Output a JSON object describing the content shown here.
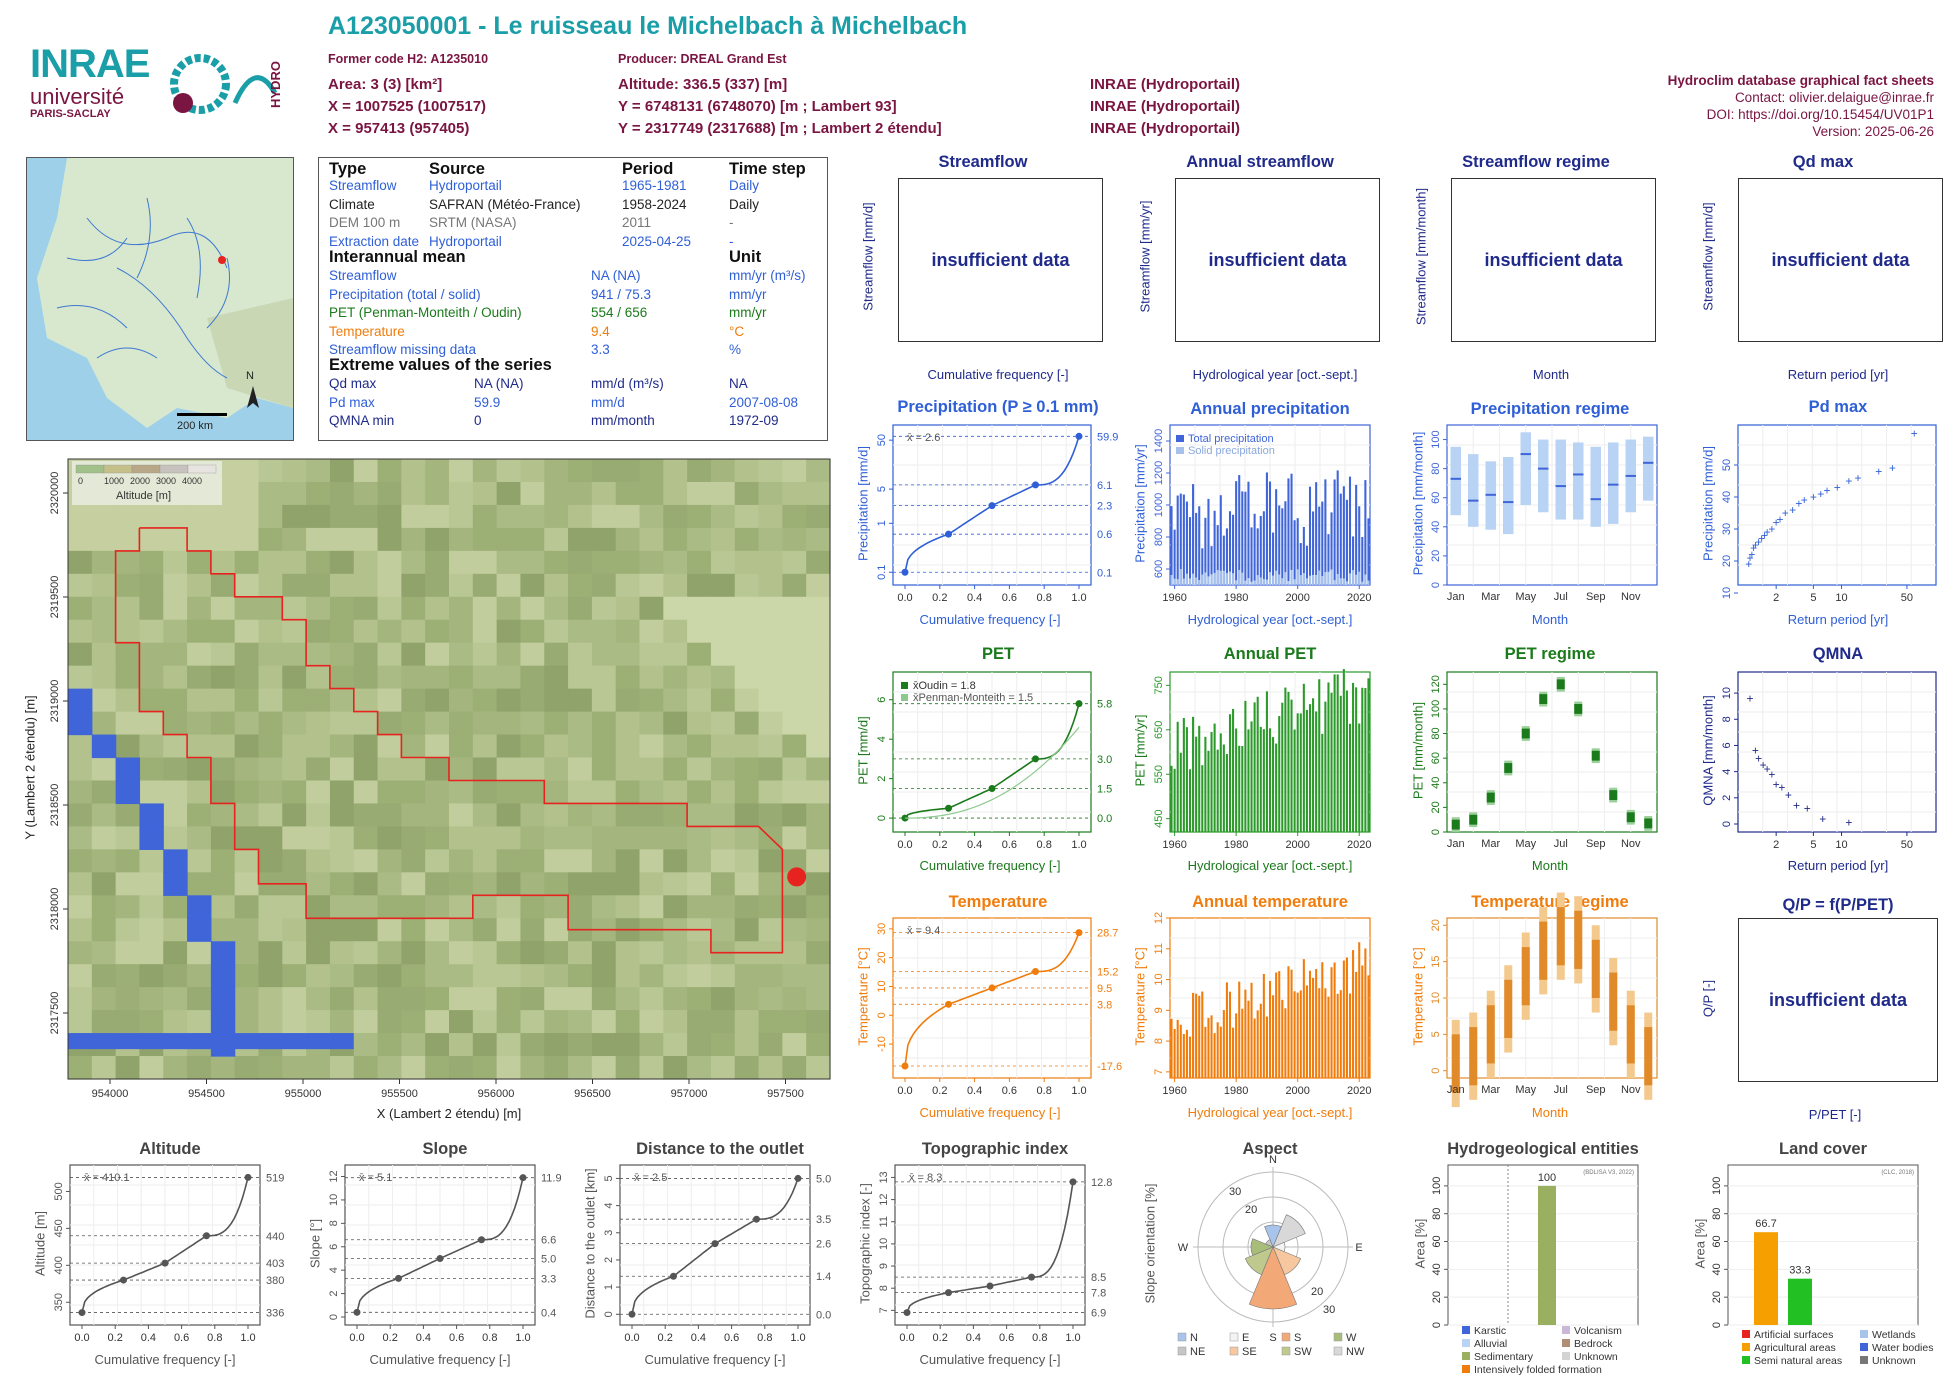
{
  "header": {
    "title": "A123050001 - Le ruisseau le Michelbach à Michelbach",
    "former_code": "Former code H2: A1235010",
    "producer": "Producer: DREAL Grand Est",
    "area": "Area: 3 (3) [km²]",
    "altitude": "Altitude: 336.5 (337) [m]",
    "x1": "X = 1007525 (1007517)",
    "y1": "Y = 6748131 (6748070) [m ; Lambert 93]",
    "src1": "INRAE (Hydroportail)",
    "x2": "X = 957413 (957405)",
    "y2": "Y = 2317749 (2317688) [m ; Lambert 2 étendu]",
    "src2": "INRAE (Hydroportail)",
    "src0": "INRAE (Hydroportail)",
    "db": "Hydroclim database graphical fact sheets",
    "contact": "Contact: olivier.delaigue@inrae.fr",
    "doi": "DOI: https://doi.org/10.15454/UV01P1",
    "version": "Version: 2025-06-26"
  },
  "logos": {
    "inrae": "INRAE",
    "univ": "université",
    "ps": "PARIS-SACLAY",
    "hydro": "HYDRO"
  },
  "overview_map": {
    "scale": "200 km",
    "north": "N"
  },
  "info": {
    "h_type": "Type",
    "h_source": "Source",
    "h_period": "Period",
    "h_timestep": "Time step",
    "rows": [
      {
        "type": "Streamflow",
        "source": "Hydroportail",
        "period": "1965-1981",
        "step": "Daily"
      },
      {
        "type": "Climate",
        "source": "SAFRAN (Météo-France)",
        "period": "1958-2024",
        "step": "Daily"
      },
      {
        "type": "DEM 100 m",
        "source": "SRTM (NASA)",
        "period": "2011",
        "step": "-"
      },
      {
        "type": "Extraction date",
        "source": "Hydroportail",
        "period": "2025-04-25",
        "step": "-"
      }
    ],
    "h_mean": "Interannual mean",
    "h_unit": "Unit",
    "mean_rows": [
      {
        "label": "Streamflow",
        "value": "NA (NA)",
        "unit": "mm/yr (m³/s)"
      },
      {
        "label": "Precipitation (total / solid)",
        "value": "941 / 75.3",
        "unit": "mm/yr"
      },
      {
        "label": "PET (Penman-Monteith / Oudin)",
        "value": "554 / 656",
        "unit": "mm/yr"
      },
      {
        "label": "Temperature",
        "value": "9.4",
        "unit": "°C"
      },
      {
        "label": "Streamflow missing data",
        "value": "3.3",
        "unit": "%"
      }
    ],
    "h_extreme": "Extreme values of the series",
    "ext_rows": [
      {
        "label": "Qd max",
        "value": "NA (NA)",
        "unit": "mm/d (m³/s)",
        "date": "NA"
      },
      {
        "label": "Pd max",
        "value": "59.9",
        "unit": "mm/d",
        "date": "2007-08-08"
      },
      {
        "label": "QMNA min",
        "value": "0",
        "unit": "mm/month",
        "date": "1972-09"
      }
    ]
  },
  "dem_map": {
    "legend_title": "Altitude [m]",
    "legend_ticks": [
      "0",
      "1000",
      "2000",
      "3000",
      "4000"
    ],
    "xlabel": "X (Lambert 2 étendu) [m]",
    "ylabel": "Y (Lambert 2 étendu) [m]",
    "xticks": [
      "954000",
      "954500",
      "955000",
      "955500",
      "956000",
      "956500",
      "957000",
      "957500"
    ],
    "yticks": [
      "2317500",
      "2318000",
      "2318500",
      "2319000",
      "2319500",
      "2320000"
    ]
  },
  "panels": {
    "streamflow": {
      "title": "Streamflow",
      "ylabel": "Streamflow [mm/d]",
      "xlabel": "Cumulative frequency [-]",
      "msg": "insufficient data"
    },
    "annual_streamflow": {
      "title": "Annual streamflow",
      "ylabel": "Streamflow [mm/yr]",
      "xlabel": "Hydrological year [oct.-sept.]",
      "msg": "insufficient data"
    },
    "streamflow_regime": {
      "title": "Streamflow regime",
      "ylabel": "Streamflow [mm/month]",
      "xlabel": "Month",
      "msg": "insufficient data"
    },
    "qd_max": {
      "title": "Qd max",
      "ylabel": "Streamflow [mm/d]",
      "xlabel": "Return period [yr]",
      "msg": "insufficient data"
    },
    "precip": {
      "title": "Precipitation (P ≥ 0.1 mm)",
      "ylabel": "Precipitation [mm/d]",
      "xlabel": "Cumulative frequency [-]",
      "mean": "x̄ = 2.6"
    },
    "annual_precip": {
      "title": "Annual precipitation",
      "ylabel": "Precipitation [mm/yr]",
      "xlabel": "Hydrological year [oct.-sept.]",
      "legend": [
        "Total precipitation",
        "Solid precipitation"
      ]
    },
    "precip_regime": {
      "title": "Precipitation regime",
      "ylabel": "Precipitation [mm/month]",
      "xlabel": "Month"
    },
    "pd_max": {
      "title": "Pd max",
      "ylabel": "Precipitation [mm/d]",
      "xlabel": "Return period [yr]"
    },
    "pet": {
      "title": "PET",
      "ylabel": "PET [mm/d]",
      "xlabel": "Cumulative frequency [-]",
      "legend": [
        "x̄Oudin = 1.8",
        "x̄Penman-Monteith = 1.5"
      ]
    },
    "annual_pet": {
      "title": "Annual PET",
      "ylabel": "PET [mm/yr]",
      "xlabel": "Hydrological year [oct.-sept.]"
    },
    "pet_regime": {
      "title": "PET regime",
      "ylabel": "PET [mm/month]",
      "xlabel": "Month"
    },
    "qmna": {
      "title": "QMNA",
      "ylabel": "QMNA [mm/month]",
      "xlabel": "Return period [yr]"
    },
    "temp": {
      "title": "Temperature",
      "ylabel": "Temperature [°C]",
      "xlabel": "Cumulative frequency [-]",
      "mean": "x̄ = 9.4"
    },
    "annual_temp": {
      "title": "Annual temperature",
      "ylabel": "Temperature [°C]",
      "xlabel": "Hydrological year [oct.-sept.]"
    },
    "temp_regime": {
      "title": "Temperature regime",
      "ylabel": "Temperature [°C]",
      "xlabel": "Month"
    },
    "qp": {
      "title": "Q/P = f(P/PET)",
      "ylabel": "Q/P [-]",
      "xlabel": "P/PET [-]",
      "msg": "insufficient data"
    },
    "altitude": {
      "title": "Altitude",
      "ylabel": "Altitude [m]",
      "xlabel": "Cumulative frequency [-]",
      "mean": "x̄ = 410.1"
    },
    "slope": {
      "title": "Slope",
      "ylabel": "Slope [°]",
      "xlabel": "Cumulative frequency [-]",
      "mean": "x̄ = 5.1"
    },
    "distance": {
      "title": "Distance to the outlet",
      "ylabel": "Distance to the outlet [km]",
      "xlabel": "Cumulative frequency [-]",
      "mean": "x̄ = 2.5"
    },
    "topo": {
      "title": "Topographic index",
      "ylabel": "Topographic index [-]",
      "xlabel": "Cumulative frequency [-]",
      "mean": "x̄ = 8.3"
    },
    "aspect": {
      "title": "Aspect",
      "ylabel": "Slope orientation [%]",
      "legend": [
        "N",
        "E",
        "S",
        "W",
        "NE",
        "SE",
        "SW",
        "NW"
      ]
    },
    "hydrogeo": {
      "title": "Hydrogeological entities",
      "ylabel": "Area [%]",
      "source": "(BDLISA V3, 2022)",
      "legend": [
        "Karstic",
        "Volcanism",
        "Alluvial",
        "Bedrock",
        "Sedimentary",
        "Unknown",
        "Intensively folded formation"
      ]
    },
    "landcover": {
      "title": "Land cover",
      "ylabel": "Area [%]",
      "source": "(CLC, 2018)",
      "legend": [
        "Artificial surfaces",
        "Wetlands",
        "Agricultural areas",
        "Water bodies",
        "Semi natural areas",
        "Unknown"
      ]
    }
  },
  "chart_data": [
    {
      "type": "line",
      "name": "precip_cdf",
      "x": [
        0,
        0.25,
        0.5,
        0.75,
        1.0
      ],
      "y": [
        0.1,
        0.6,
        2.3,
        6.1,
        59.9
      ],
      "yscale": "log",
      "ylim": [
        0.08,
        70
      ],
      "yticks": [
        0.1,
        1,
        5,
        50
      ],
      "right_labels": [
        59.9,
        6.1,
        2.3,
        0.6,
        0.1
      ]
    },
    {
      "type": "bar",
      "name": "annual_precip",
      "x_start": 1959,
      "x_end": 2023,
      "xticks": [
        1960,
        1980,
        2000,
        2020
      ],
      "yticks": [
        600,
        800,
        1000,
        1200,
        1400
      ],
      "ylim": [
        500,
        1500
      ]
    },
    {
      "type": "box",
      "name": "precip_regime",
      "categories": [
        "Jan",
        "Feb",
        "Mar",
        "Apr",
        "May",
        "Jun",
        "Jul",
        "Aug",
        "Sep",
        "Oct",
        "Nov",
        "Dec"
      ],
      "median": [
        73,
        58,
        62,
        57,
        90,
        80,
        68,
        76,
        59,
        69,
        75,
        84
      ],
      "q1": [
        48,
        40,
        38,
        35,
        55,
        50,
        45,
        45,
        40,
        42,
        50,
        58
      ],
      "q3": [
        95,
        90,
        85,
        88,
        105,
        100,
        100,
        98,
        95,
        98,
        100,
        102
      ],
      "ylim": [
        0,
        110
      ],
      "yticks": [
        0,
        20,
        40,
        60,
        80,
        100
      ]
    },
    {
      "type": "scatter",
      "name": "pd_max",
      "xscale": "log",
      "xticks": [
        2,
        5,
        10,
        50
      ],
      "yticks": [
        10,
        20,
        30,
        40,
        50
      ],
      "ylim": [
        15,
        60
      ],
      "x": [
        1.02,
        1.05,
        1.1,
        1.15,
        1.2,
        1.3,
        1.4,
        1.5,
        1.6,
        1.8,
        2,
        2.2,
        2.5,
        3,
        3.5,
        4,
        5,
        6,
        7,
        9,
        12,
        15,
        25,
        35,
        60
      ],
      "y": [
        19,
        21,
        22,
        24,
        25,
        26,
        27,
        28,
        29,
        30,
        32,
        33,
        35,
        36,
        38,
        39,
        40,
        41,
        42,
        43,
        45,
        46,
        48,
        49,
        59.9
      ]
    },
    {
      "type": "line",
      "name": "pet_cdf",
      "x": [
        0,
        0.25,
        0.5,
        0.75,
        1.0
      ],
      "y": [
        0.0,
        0.5,
        1.5,
        3.0,
        5.8
      ],
      "ylim": [
        -0.3,
        7
      ],
      "yticks": [
        0,
        2,
        4,
        6
      ],
      "right_labels": [
        5.8,
        3.0,
        1.5,
        0.0
      ]
    },
    {
      "type": "bar",
      "name": "annual_pet",
      "x_start": 1959,
      "x_end": 2023,
      "xticks": [
        1960,
        1980,
        2000,
        2020
      ],
      "yticks": [
        450,
        550,
        650,
        750
      ],
      "ylim": [
        420,
        780
      ]
    },
    {
      "type": "box",
      "name": "pet_regime",
      "categories": [
        "Jan",
        "Feb",
        "Mar",
        "Apr",
        "May",
        "Jun",
        "Jul",
        "Aug",
        "Sep",
        "Oct",
        "Nov",
        "Dec"
      ],
      "median": [
        6,
        10,
        28,
        52,
        80,
        108,
        120,
        100,
        62,
        30,
        12,
        7
      ],
      "ylim": [
        0,
        130
      ],
      "yticks": [
        0,
        20,
        40,
        60,
        80,
        100,
        120
      ]
    },
    {
      "type": "scatter",
      "name": "qmna",
      "xscale": "log",
      "xticks": [
        2,
        5,
        10,
        50
      ],
      "yticks": [
        0,
        2,
        4,
        6,
        8,
        10
      ],
      "ylim": [
        0,
        11
      ],
      "x": [
        1.05,
        1.2,
        1.3,
        1.45,
        1.6,
        1.8,
        2.0,
        2.3,
        2.7,
        3.3,
        4.3,
        6.3,
        12.0
      ],
      "y": [
        9.6,
        5.6,
        5.0,
        4.5,
        4.2,
        3.8,
        3.0,
        2.8,
        2.2,
        1.4,
        1.2,
        0.4,
        0.1
      ]
    },
    {
      "type": "line",
      "name": "temp_cdf",
      "x": [
        0,
        0.25,
        0.5,
        0.75,
        1.0
      ],
      "y": [
        -17.6,
        3.8,
        9.5,
        15.2,
        28.7
      ],
      "ylim": [
        -19,
        31
      ],
      "yticks": [
        -10,
        0,
        10,
        20,
        30
      ],
      "right_labels": [
        28.7,
        15.2,
        9.5,
        3.8,
        -17.6
      ]
    },
    {
      "type": "bar",
      "name": "annual_temp",
      "x_start": 1959,
      "x_end": 2023,
      "xticks": [
        1960,
        1980,
        2000,
        2020
      ],
      "yticks": [
        7,
        8,
        9,
        10,
        11,
        12
      ],
      "ylim": [
        6.8,
        12
      ]
    },
    {
      "type": "box",
      "name": "temp_regime",
      "categories": [
        "Jan",
        "Feb",
        "Mar",
        "Apr",
        "May",
        "Jun",
        "Jul",
        "Aug",
        "Sep",
        "Oct",
        "Nov",
        "Dec"
      ],
      "median": [
        1,
        2,
        5,
        8.5,
        13,
        16.5,
        18.5,
        18,
        14,
        9.5,
        5,
        2
      ],
      "ylim": [
        -1,
        21
      ],
      "yticks": [
        0,
        5,
        10,
        15,
        20
      ]
    },
    {
      "type": "line",
      "name": "altitude_cdf",
      "x": [
        0,
        0.25,
        0.5,
        0.75,
        1.0
      ],
      "y": [
        336,
        380,
        403,
        440,
        519
      ],
      "yticks": [
        350,
        400,
        450,
        500
      ],
      "ylim": [
        330,
        525
      ],
      "right_labels": [
        519,
        440,
        403,
        380,
        336
      ]
    },
    {
      "type": "line",
      "name": "slope_cdf",
      "x": [
        0,
        0.25,
        0.5,
        0.75,
        1.0
      ],
      "y": [
        0.4,
        3.3,
        5.0,
        6.6,
        11.9
      ],
      "yticks": [
        0,
        2,
        4,
        6,
        8,
        10,
        12
      ],
      "ylim": [
        0,
        12.3
      ],
      "right_labels": [
        11.9,
        6.6,
        5.0,
        3.3,
        0.4
      ]
    },
    {
      "type": "line",
      "name": "distance_cdf",
      "x": [
        0,
        0.25,
        0.5,
        0.75,
        1.0
      ],
      "y": [
        0.0,
        1.4,
        2.6,
        3.5,
        5.0
      ],
      "yticks": [
        0,
        1,
        2,
        3,
        4,
        5
      ],
      "ylim": [
        -0.1,
        5.2
      ],
      "right_labels": [
        5.0,
        3.5,
        2.6,
        1.4,
        0.0
      ]
    },
    {
      "type": "line",
      "name": "topo_cdf",
      "x": [
        0,
        0.25,
        0.5,
        0.75,
        1.0
      ],
      "y": [
        6.9,
        7.8,
        8.1,
        8.5,
        12.8
      ],
      "yticks": [
        7,
        8,
        9,
        10,
        11,
        12,
        13
      ],
      "ylim": [
        6.7,
        13.2
      ],
      "right_labels": [
        12.8,
        8.5,
        7.8,
        6.9
      ]
    },
    {
      "type": "bar",
      "name": "hydrogeo",
      "categories": [
        "Sedimentary"
      ],
      "values": [
        100
      ],
      "yticks": [
        0,
        20,
        40,
        60,
        80,
        100
      ],
      "ylim": [
        0,
        115
      ]
    },
    {
      "type": "bar",
      "name": "landcover",
      "categories": [
        "Agricultural areas",
        "Semi natural areas"
      ],
      "values": [
        66.7,
        33.3
      ],
      "yticks": [
        0,
        20,
        40,
        60,
        80,
        100
      ],
      "ylim": [
        0,
        115
      ]
    },
    {
      "type": "pie",
      "name": "aspect",
      "ticks": [
        20,
        30
      ],
      "labels": [
        "N",
        "E",
        "S",
        "W"
      ]
    }
  ],
  "colors": {
    "blue": "#2f5fd6",
    "darkblue": "#1f2a8a",
    "green": "#1b7a1b",
    "orange": "#f07c0c",
    "maroon": "#7a1542",
    "teal": "#1a9ea7",
    "grey": "#555555"
  }
}
